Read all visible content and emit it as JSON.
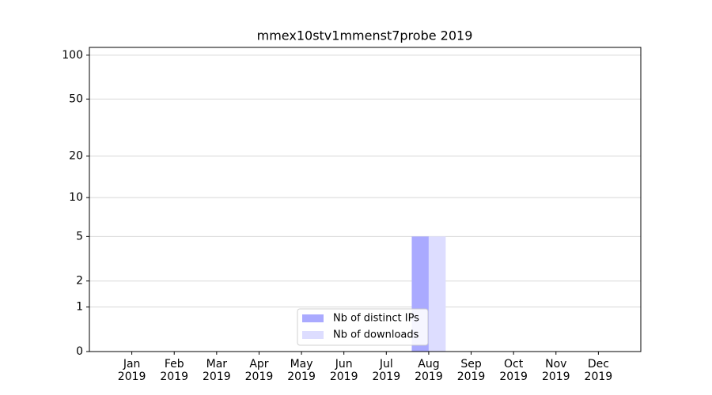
{
  "chart_data": {
    "type": "bar",
    "title": "mmex10stv1mmenst7probe 2019",
    "categories": [
      "Jan\n2019",
      "Feb\n2019",
      "Mar\n2019",
      "Apr\n2019",
      "May\n2019",
      "Jun\n2019",
      "Jul\n2019",
      "Aug\n2019",
      "Sep\n2019",
      "Oct\n2019",
      "Nov\n2019",
      "Dec\n2019"
    ],
    "series": [
      {
        "name": "Nb of distinct IPs",
        "color": "#aaaaff",
        "values": [
          0,
          0,
          0,
          0,
          0,
          0,
          0,
          5,
          0,
          0,
          0,
          0
        ]
      },
      {
        "name": "Nb of downloads",
        "color": "#ddddff",
        "values": [
          0,
          0,
          0,
          0,
          0,
          0,
          0,
          5,
          0,
          0,
          0,
          0
        ]
      }
    ],
    "yscale": "log1p",
    "ylim": [
      0,
      113
    ],
    "yticks": [
      0,
      1,
      2,
      5,
      10,
      20,
      50,
      100
    ],
    "grid": true,
    "legend": "lower center"
  }
}
